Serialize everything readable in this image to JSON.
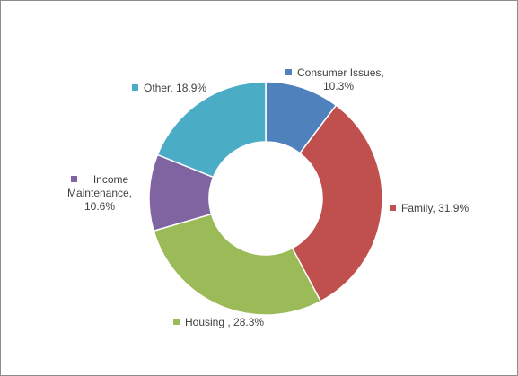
{
  "chart_data": {
    "type": "pie",
    "variant": "donut",
    "title": "",
    "slices": [
      {
        "label": "Consumer Issues",
        "value": 10.3,
        "display": "10.3%",
        "color": "#4F81BD"
      },
      {
        "label": "Family",
        "value": 31.9,
        "display": "31.9%",
        "color": "#C0504D"
      },
      {
        "label": "Housing ",
        "value": 28.3,
        "display": "28.3%",
        "color": "#9BBB59"
      },
      {
        "label": "Income Maintenance",
        "value": 10.6,
        "display": "10.6%",
        "color": "#8064A2"
      },
      {
        "label": "Other",
        "value": 18.9,
        "display": "18.9%",
        "color": "#4BACC6"
      }
    ],
    "labels": {
      "consumer_line1": "Consumer Issues,",
      "consumer_line2": "10.3%",
      "family": "Family, 31.9%",
      "housing": "Housing , 28.3%",
      "income_line1": "Income",
      "income_line2": "Maintenance,",
      "income_line3": "10.6%",
      "other": "Other, 18.9%"
    },
    "legend": "none",
    "start_angle": "12 o'clock, clockwise"
  }
}
